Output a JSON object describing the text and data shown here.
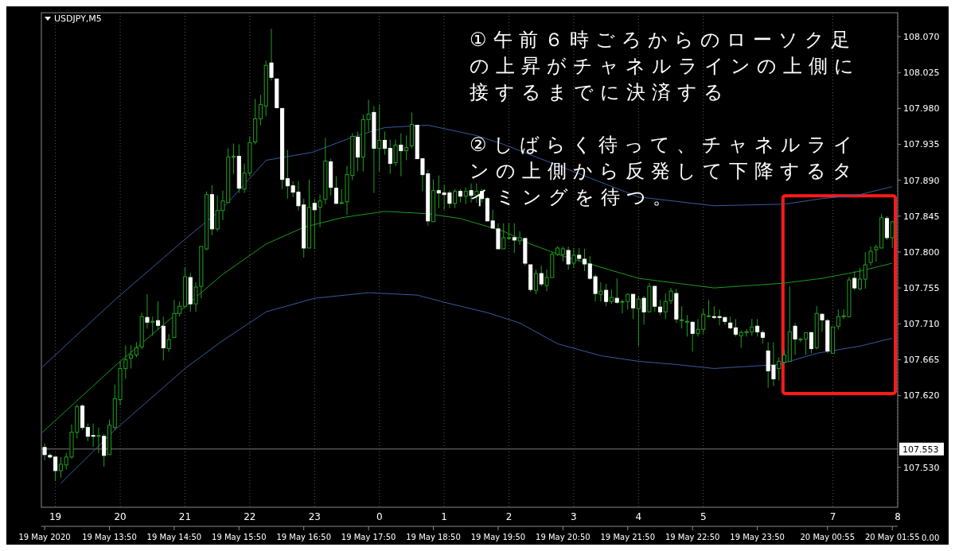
{
  "chart_data": {
    "type": "candlestick",
    "title": "USDJPY,M5",
    "x": [
      "2020-05-19T12:50",
      "2020-05-19T12:55",
      "2020-05-19T13:00",
      "2020-05-19T13:05",
      "2020-05-19T13:10",
      "2020-05-19T13:15",
      "2020-05-19T13:20",
      "2020-05-19T13:25",
      "2020-05-19T13:30",
      "2020-05-19T13:35",
      "2020-05-19T13:40",
      "2020-05-19T13:45",
      "2020-05-19T13:50",
      "2020-05-19T13:55",
      "2020-05-19T14:00",
      "2020-05-19T14:05",
      "2020-05-19T14:10",
      "2020-05-19T14:15",
      "2020-05-19T14:20",
      "2020-05-19T14:25",
      "2020-05-19T14:30",
      "2020-05-19T14:35",
      "2020-05-19T14:40",
      "2020-05-19T14:45",
      "2020-05-19T14:50",
      "2020-05-19T14:55",
      "2020-05-19T15:00",
      "2020-05-19T15:05",
      "2020-05-19T15:10",
      "2020-05-19T15:15",
      "2020-05-19T15:20",
      "2020-05-19T15:25",
      "2020-05-19T15:30",
      "2020-05-19T15:35",
      "2020-05-19T15:40",
      "2020-05-19T15:45",
      "2020-05-19T15:50",
      "2020-05-19T15:55",
      "2020-05-19T16:00",
      "2020-05-19T16:05",
      "2020-05-19T16:10",
      "2020-05-19T16:15",
      "2020-05-19T16:20",
      "2020-05-19T16:25",
      "2020-05-19T16:30",
      "2020-05-19T16:35",
      "2020-05-19T16:40",
      "2020-05-19T16:45",
      "2020-05-19T16:50",
      "2020-05-19T16:55",
      "2020-05-19T17:00",
      "2020-05-19T17:05",
      "2020-05-19T17:10",
      "2020-05-19T17:15",
      "2020-05-19T17:20",
      "2020-05-19T17:25",
      "2020-05-19T17:30",
      "2020-05-19T17:35",
      "2020-05-19T17:40",
      "2020-05-19T17:45",
      "2020-05-19T17:50",
      "2020-05-19T17:55",
      "2020-05-19T18:00",
      "2020-05-19T18:05",
      "2020-05-19T18:10",
      "2020-05-19T18:15",
      "2020-05-19T18:20",
      "2020-05-19T18:25",
      "2020-05-19T18:30",
      "2020-05-19T18:35",
      "2020-05-19T18:40",
      "2020-05-19T18:45",
      "2020-05-19T18:50",
      "2020-05-19T18:55",
      "2020-05-19T19:00",
      "2020-05-19T19:05",
      "2020-05-19T19:10",
      "2020-05-19T19:15",
      "2020-05-19T19:20",
      "2020-05-19T19:25",
      "2020-05-19T19:30",
      "2020-05-19T19:35",
      "2020-05-19T19:40",
      "2020-05-19T19:45",
      "2020-05-19T19:50",
      "2020-05-19T19:55",
      "2020-05-19T20:00",
      "2020-05-19T20:05",
      "2020-05-19T20:10",
      "2020-05-19T20:15",
      "2020-05-19T20:20",
      "2020-05-19T20:25",
      "2020-05-19T20:30",
      "2020-05-19T20:35",
      "2020-05-19T20:40",
      "2020-05-19T20:45",
      "2020-05-19T20:50",
      "2020-05-19T20:55",
      "2020-05-19T21:00",
      "2020-05-19T21:05",
      "2020-05-19T21:10",
      "2020-05-19T21:15",
      "2020-05-19T21:20",
      "2020-05-19T21:25",
      "2020-05-19T21:30",
      "2020-05-19T21:35",
      "2020-05-19T21:40",
      "2020-05-19T21:45",
      "2020-05-19T21:50",
      "2020-05-19T21:55",
      "2020-05-19T22:00",
      "2020-05-19T22:05",
      "2020-05-19T22:10",
      "2020-05-19T22:15",
      "2020-05-19T22:20",
      "2020-05-19T22:25",
      "2020-05-19T22:30",
      "2020-05-19T22:35",
      "2020-05-19T22:40",
      "2020-05-19T22:45",
      "2020-05-19T22:50",
      "2020-05-19T22:55",
      "2020-05-19T23:00",
      "2020-05-19T23:05",
      "2020-05-19T23:10",
      "2020-05-19T23:15",
      "2020-05-19T23:20",
      "2020-05-19T23:25",
      "2020-05-19T23:30",
      "2020-05-19T23:35",
      "2020-05-19T23:40",
      "2020-05-19T23:45",
      "2020-05-19T23:50",
      "2020-05-19T23:55",
      "2020-05-20T00:00",
      "2020-05-20T00:05",
      "2020-05-20T00:10",
      "2020-05-20T00:15",
      "2020-05-20T00:20",
      "2020-05-20T00:25",
      "2020-05-20T00:30",
      "2020-05-20T00:35",
      "2020-05-20T00:40",
      "2020-05-20T00:45",
      "2020-05-20T00:50",
      "2020-05-20T00:55",
      "2020-05-20T01:00",
      "2020-05-20T01:05",
      "2020-05-20T01:10",
      "2020-05-20T01:15",
      "2020-05-20T01:20",
      "2020-05-20T01:25",
      "2020-05-20T01:30",
      "2020-05-20T01:35",
      "2020-05-20T01:40",
      "2020-05-20T01:45",
      "2020-05-20T01:50",
      "2020-05-20T01:55"
    ],
    "series": [
      {
        "type": "candlestick",
        "color": "#1fa01f",
        "colors": [
          "#ffffff",
          "#ffffff",
          "#ffffff",
          "#1fa01f",
          "#1fa01f",
          "#1fa01f",
          "#1fa01f",
          "#ffffff",
          "#ffffff",
          "#ffffff",
          "#1fa01f",
          "#ffffff",
          "#1fa01f",
          "#1fa01f",
          "#1fa01f",
          "#1fa01f",
          "#1fa01f",
          "#1fa01f",
          "#1fa01f",
          "#ffffff",
          "#1fa01f",
          "#ffffff",
          "#ffffff",
          "#1fa01f",
          "#1fa01f",
          "#1fa01f",
          "#1fa01f",
          "#ffffff",
          "#1fa01f",
          "#1fa01f",
          "#1fa01f",
          "#ffffff",
          "#1fa01f",
          "#1fa01f",
          "#1fa01f",
          "#1fa01f",
          "#ffffff",
          "#1fa01f",
          "#1fa01f",
          "#1fa01f",
          "#1fa01f",
          "#1fa01f",
          "#ffffff",
          "#ffffff",
          "#ffffff",
          "#ffffff",
          "#ffffff",
          "#ffffff",
          "#ffffff",
          "#1fa01f",
          "#ffffff",
          "#1fa01f",
          "#1fa01f",
          "#ffffff",
          "#ffffff",
          "#1fa01f",
          "#1fa01f",
          "#1fa01f",
          "#ffffff",
          "#1fa01f",
          "#1fa01f",
          "#ffffff",
          "#1fa01f",
          "#ffffff",
          "#ffffff",
          "#1fa01f",
          "#ffffff",
          "#1fa01f",
          "#1fa01f",
          "#ffffff",
          "#ffffff",
          "#ffffff",
          "#1fa01f",
          "#ffffff",
          "#ffffff",
          "#ffffff",
          "#1fa01f",
          "#ffffff",
          "#1fa01f",
          "#ffffff",
          "#1fa01f",
          "#ffffff",
          "#ffffff",
          "#ffffff",
          "#ffffff",
          "#1fa01f",
          "#1fa01f",
          "#ffffff",
          "#1fa01f",
          "#ffffff",
          "#ffffff",
          "#1fa01f",
          "#ffffff",
          "#1fa01f",
          "#1fa01f",
          "#1fa01f",
          "#1fa01f",
          "#ffffff",
          "#1fa01f",
          "#ffffff",
          "#ffffff",
          "#ffffff",
          "#ffffff",
          "#1fa01f",
          "#ffffff",
          "#1fa01f",
          "#ffffff",
          "#1fa01f",
          "#1fa01f",
          "#ffffff",
          "#1fa01f",
          "#ffffff",
          "#1fa01f",
          "#ffffff",
          "#ffffff",
          "#1fa01f",
          "#1fa01f",
          "#ffffff",
          "#1fa01f",
          "#1fa01f",
          "#ffffff",
          "#1fa01f",
          "#1fa01f",
          "#1fa01f",
          "#ffffff",
          "#ffffff",
          "#ffffff",
          "#ffffff",
          "#ffffff",
          "#1fa01f",
          "#1fa01f",
          "#1fa01f",
          "#ffffff",
          "#ffffff",
          "#ffffff",
          "#ffffff",
          "#1fa01f",
          "#1fa01f",
          "#1fa01f",
          "#ffffff",
          "#1fa01f",
          "#1fa01f",
          "#ffffff",
          "#1fa01f",
          "#ffffff",
          "#ffffff",
          "#1fa01f",
          "#1fa01f",
          "#1fa01f",
          "#1fa01f",
          "#ffffff",
          "#1fa01f",
          "#1fa01f",
          "#1fa01f",
          "#1fa01f",
          "#1fa01f",
          "#ffffff",
          "#1fa01f"
        ],
        "ohlc": [
          [
            107.555,
            107.56,
            107.539,
            107.546
          ],
          [
            107.545,
            107.548,
            107.541,
            107.543
          ],
          [
            107.543,
            107.543,
            107.513,
            107.526
          ],
          [
            107.526,
            107.543,
            107.517,
            107.534
          ],
          [
            107.533,
            107.548,
            107.527,
            107.543
          ],
          [
            107.543,
            107.584,
            107.541,
            107.574
          ],
          [
            107.574,
            107.609,
            107.566,
            107.606
          ],
          [
            107.607,
            107.609,
            107.577,
            107.58
          ],
          [
            107.58,
            107.585,
            107.563,
            107.569
          ],
          [
            107.57,
            107.585,
            107.556,
            107.569
          ],
          [
            107.569,
            107.58,
            107.548,
            107.57
          ],
          [
            107.569,
            107.572,
            107.531,
            107.545
          ],
          [
            107.546,
            107.59,
            107.546,
            107.583
          ],
          [
            107.58,
            107.634,
            107.577,
            107.616
          ],
          [
            107.615,
            107.663,
            107.608,
            107.654
          ],
          [
            107.654,
            107.683,
            107.641,
            107.665
          ],
          [
            107.667,
            107.683,
            107.654,
            107.671
          ],
          [
            107.671,
            107.687,
            107.668,
            107.68
          ],
          [
            107.681,
            107.724,
            107.678,
            107.719
          ],
          [
            107.718,
            107.747,
            107.704,
            107.712
          ],
          [
            107.713,
            107.719,
            107.695,
            107.713
          ],
          [
            107.714,
            107.738,
            107.703,
            107.708
          ],
          [
            107.707,
            107.719,
            107.664,
            107.68
          ],
          [
            107.679,
            107.697,
            107.675,
            107.69
          ],
          [
            107.693,
            107.74,
            107.692,
            107.723
          ],
          [
            107.723,
            107.738,
            107.719,
            107.732
          ],
          [
            107.732,
            107.781,
            107.73,
            107.769
          ],
          [
            107.768,
            107.774,
            107.725,
            107.735
          ],
          [
            107.735,
            107.762,
            107.725,
            107.756
          ],
          [
            107.757,
            107.807,
            107.742,
            107.807
          ],
          [
            107.804,
            107.876,
            107.802,
            107.872
          ],
          [
            107.872,
            107.884,
            107.821,
            107.829
          ],
          [
            107.829,
            107.871,
            107.826,
            107.852
          ],
          [
            107.852,
            107.877,
            107.84,
            107.864
          ],
          [
            107.862,
            107.93,
            107.862,
            107.919
          ],
          [
            107.92,
            107.936,
            107.898,
            107.92
          ],
          [
            107.92,
            107.935,
            107.874,
            107.88
          ],
          [
            107.879,
            107.911,
            107.874,
            107.899
          ],
          [
            107.899,
            107.945,
            107.895,
            107.937
          ],
          [
            107.938,
            107.992,
            107.935,
            107.967
          ],
          [
            107.967,
            107.997,
            107.959,
            107.985
          ],
          [
            107.983,
            108.04,
            107.97,
            108.034
          ],
          [
            108.037,
            108.08,
            108.015,
            108.019
          ],
          [
            108.017,
            108.017,
            107.98,
            107.981
          ],
          [
            107.98,
            107.98,
            107.879,
            107.891
          ],
          [
            107.892,
            107.928,
            107.867,
            107.883
          ],
          [
            107.883,
            107.889,
            107.869,
            107.875
          ],
          [
            107.875,
            107.889,
            107.852,
            107.858
          ],
          [
            107.859,
            107.867,
            107.793,
            107.805
          ],
          [
            107.805,
            107.891,
            107.805,
            107.856
          ],
          [
            107.861,
            107.867,
            107.804,
            107.853
          ],
          [
            107.856,
            107.872,
            107.831,
            107.864
          ],
          [
            107.866,
            107.943,
            107.86,
            107.914
          ],
          [
            107.913,
            107.917,
            107.871,
            107.881
          ],
          [
            107.88,
            107.895,
            107.86,
            107.861
          ],
          [
            107.862,
            107.879,
            107.86,
            107.862
          ],
          [
            107.863,
            107.908,
            107.847,
            107.897
          ],
          [
            107.896,
            107.949,
            107.89,
            107.945
          ],
          [
            107.944,
            107.951,
            107.901,
            107.919
          ],
          [
            107.919,
            107.972,
            107.901,
            107.966
          ],
          [
            107.966,
            107.991,
            107.951,
            107.973
          ],
          [
            107.975,
            107.983,
            107.874,
            107.93
          ],
          [
            107.93,
            107.985,
            107.901,
            107.94
          ],
          [
            107.94,
            107.951,
            107.922,
            107.93
          ],
          [
            107.93,
            107.941,
            107.898,
            107.911
          ],
          [
            107.912,
            107.941,
            107.908,
            107.934
          ],
          [
            107.934,
            107.949,
            107.895,
            107.927
          ],
          [
            107.927,
            107.946,
            107.915,
            107.931
          ],
          [
            107.933,
            107.975,
            107.93,
            107.96
          ],
          [
            107.959,
            107.959,
            107.917,
            107.917
          ],
          [
            107.917,
            107.917,
            107.876,
            107.897
          ],
          [
            107.898,
            107.903,
            107.833,
            107.839
          ],
          [
            107.838,
            107.891,
            107.838,
            107.877
          ],
          [
            107.877,
            107.896,
            107.855,
            107.874
          ],
          [
            107.874,
            107.884,
            107.853,
            107.872
          ],
          [
            107.874,
            107.877,
            107.855,
            107.861
          ],
          [
            107.861,
            107.879,
            107.855,
            107.876
          ],
          [
            107.876,
            107.879,
            107.862,
            107.87
          ],
          [
            107.87,
            107.881,
            107.86,
            107.876
          ],
          [
            107.877,
            107.886,
            107.862,
            107.871
          ],
          [
            107.871,
            107.886,
            107.862,
            107.876
          ],
          [
            107.876,
            107.879,
            107.862,
            107.867
          ],
          [
            107.867,
            107.869,
            107.839,
            107.839
          ],
          [
            107.839,
            107.853,
            107.83,
            107.83
          ],
          [
            107.829,
            107.836,
            107.804,
            107.804
          ],
          [
            107.804,
            107.836,
            107.804,
            107.818
          ],
          [
            107.818,
            107.836,
            107.815,
            107.818
          ],
          [
            107.818,
            107.836,
            107.799,
            107.815
          ],
          [
            107.814,
            107.826,
            107.809,
            107.818
          ],
          [
            107.817,
            107.817,
            107.783,
            107.786
          ],
          [
            107.784,
            107.784,
            107.75,
            107.753
          ],
          [
            107.752,
            107.778,
            107.747,
            107.773
          ],
          [
            107.773,
            107.783,
            107.757,
            107.76
          ],
          [
            107.758,
            107.778,
            107.751,
            107.768
          ],
          [
            107.768,
            107.8,
            107.768,
            107.797
          ],
          [
            107.797,
            107.807,
            107.795,
            107.805
          ],
          [
            107.797,
            107.807,
            107.788,
            107.804
          ],
          [
            107.802,
            107.807,
            107.778,
            107.785
          ],
          [
            107.786,
            107.805,
            107.78,
            107.796
          ],
          [
            107.796,
            107.805,
            107.788,
            107.792
          ],
          [
            107.791,
            107.804,
            107.776,
            107.785
          ],
          [
            107.785,
            107.795,
            107.765,
            107.767
          ],
          [
            107.769,
            107.772,
            107.738,
            107.748
          ],
          [
            107.747,
            107.762,
            107.738,
            107.751
          ],
          [
            107.752,
            107.76,
            107.732,
            107.738
          ],
          [
            107.738,
            107.753,
            107.735,
            107.743
          ],
          [
            107.742,
            107.767,
            107.735,
            107.737
          ],
          [
            107.738,
            107.74,
            107.723,
            107.738
          ],
          [
            107.738,
            107.748,
            107.728,
            107.747
          ],
          [
            107.747,
            107.747,
            107.716,
            107.73
          ],
          [
            107.729,
            107.745,
            107.682,
            107.741
          ],
          [
            107.742,
            107.745,
            107.709,
            107.725
          ],
          [
            107.725,
            107.761,
            107.725,
            107.757
          ],
          [
            107.757,
            107.757,
            107.725,
            107.732
          ],
          [
            107.731,
            107.74,
            107.721,
            107.725
          ],
          [
            107.725,
            107.748,
            107.716,
            107.738
          ],
          [
            107.739,
            107.755,
            107.735,
            107.751
          ],
          [
            107.748,
            107.754,
            107.711,
            107.716
          ],
          [
            107.715,
            107.732,
            107.704,
            107.715
          ],
          [
            107.713,
            107.721,
            107.694,
            107.713
          ],
          [
            107.712,
            107.713,
            107.675,
            107.698
          ],
          [
            107.698,
            107.716,
            107.694,
            107.703
          ],
          [
            107.703,
            107.729,
            107.697,
            107.722
          ],
          [
            107.72,
            107.74,
            107.718,
            107.72
          ],
          [
            107.719,
            107.732,
            107.716,
            107.718
          ],
          [
            107.719,
            107.728,
            107.708,
            107.718
          ],
          [
            107.718,
            107.718,
            107.709,
            107.713
          ],
          [
            107.711,
            107.719,
            107.703,
            107.705
          ],
          [
            107.705,
            107.716,
            107.694,
            107.697
          ],
          [
            107.695,
            107.702,
            107.68,
            107.699
          ],
          [
            107.7,
            107.703,
            107.694,
            107.7
          ],
          [
            107.7,
            107.716,
            107.695,
            107.706
          ],
          [
            107.707,
            107.716,
            107.694,
            107.7
          ],
          [
            107.699,
            107.702,
            107.685,
            107.693
          ],
          [
            107.676,
            107.687,
            107.63,
            107.651
          ],
          [
            107.658,
            107.687,
            107.632,
            107.641
          ],
          [
            107.654,
            107.668,
            107.639,
            107.663
          ],
          [
            107.662,
            107.678,
            107.66,
            107.671
          ],
          [
            107.663,
            107.757,
            107.663,
            107.7
          ],
          [
            107.707,
            107.711,
            107.671,
            107.691
          ],
          [
            107.691,
            107.692,
            107.687,
            107.691
          ],
          [
            107.691,
            107.699,
            107.671,
            107.699
          ],
          [
            107.699,
            107.7,
            107.673,
            107.679
          ],
          [
            107.68,
            107.732,
            107.678,
            107.723
          ],
          [
            107.722,
            107.723,
            107.7,
            107.715
          ],
          [
            107.714,
            107.716,
            107.673,
            107.676
          ],
          [
            107.673,
            107.706,
            107.673,
            107.706
          ],
          [
            107.707,
            107.728,
            107.703,
            107.719
          ],
          [
            107.719,
            107.728,
            107.716,
            107.72
          ],
          [
            107.719,
            107.769,
            107.719,
            107.765
          ],
          [
            107.767,
            107.776,
            107.752,
            107.755
          ],
          [
            107.754,
            107.78,
            107.752,
            107.766
          ],
          [
            107.766,
            107.8,
            107.754,
            107.784
          ],
          [
            107.787,
            107.807,
            107.783,
            107.801
          ],
          [
            107.803,
            107.809,
            107.788,
            107.806
          ],
          [
            107.805,
            107.848,
            107.805,
            107.843
          ],
          [
            107.842,
            107.845,
            107.815,
            107.818
          ],
          [
            107.818,
            107.839,
            107.805,
            107.838
          ]
        ]
      },
      {
        "type": "line",
        "color": "#3a5a9c",
        "x": [
          "2020-05-19T12:48",
          "2020-05-19T13:55",
          "2020-05-19T15:00",
          "2020-05-19T15:35",
          "2020-05-19T16:15",
          "2020-05-19T16:58",
          "2020-05-19T17:35",
          "2020-05-19T18:05",
          "2020-05-19T18:45",
          "2020-05-19T19:30",
          "2020-05-19T19:55",
          "2020-05-19T20:50",
          "2020-05-19T22:00",
          "2020-05-19T23:10",
          "2020-05-20T00:15",
          "2020-05-20T00:50",
          "2020-05-20T01:25",
          "2020-05-20T01:55"
        ],
        "values": [
          107.656,
          107.74,
          107.816,
          107.855,
          107.915,
          107.925,
          107.944,
          107.956,
          107.959,
          107.946,
          107.935,
          107.906,
          107.869,
          107.858,
          107.86,
          107.867,
          107.872,
          107.882
        ]
      },
      {
        "type": "line",
        "color": "#1c9a1c",
        "x": [
          "2020-05-19T12:48",
          "2020-05-19T13:55",
          "2020-05-19T15:35",
          "2020-05-19T16:15",
          "2020-05-19T16:50",
          "2020-05-19T17:25",
          "2020-05-19T18:05",
          "2020-05-19T18:45",
          "2020-05-19T19:15",
          "2020-05-19T19:55",
          "2020-05-19T20:20",
          "2020-05-19T20:50",
          "2020-05-19T21:25",
          "2020-05-19T22:00",
          "2020-05-19T22:35",
          "2020-05-19T23:10",
          "2020-05-20T00:15",
          "2020-05-20T00:50",
          "2020-05-20T01:25",
          "2020-05-20T01:55"
        ],
        "values": [
          107.574,
          107.657,
          107.772,
          107.81,
          107.831,
          107.843,
          107.851,
          107.848,
          107.842,
          107.826,
          107.81,
          107.795,
          107.781,
          107.767,
          107.761,
          107.755,
          107.761,
          107.767,
          107.776,
          107.786
        ]
      },
      {
        "type": "line",
        "color": "#3a5a9c",
        "x": [
          "2020-05-19T13:05",
          "2020-05-19T13:55",
          "2020-05-19T15:00",
          "2020-05-19T15:35",
          "2020-05-19T16:15",
          "2020-05-19T17:00",
          "2020-05-19T17:50",
          "2020-05-19T18:35",
          "2020-05-19T19:00",
          "2020-05-19T19:40",
          "2020-05-19T20:10",
          "2020-05-19T20:45",
          "2020-05-19T21:25",
          "2020-05-19T22:00",
          "2020-05-19T22:35",
          "2020-05-19T23:10",
          "2020-05-20T00:10",
          "2020-05-20T00:45",
          "2020-05-20T01:25",
          "2020-05-20T01:55"
        ],
        "values": [
          107.51,
          107.577,
          107.654,
          107.689,
          107.725,
          107.742,
          107.749,
          107.746,
          107.737,
          107.724,
          107.711,
          107.685,
          107.67,
          107.663,
          107.659,
          107.654,
          107.659,
          107.673,
          107.682,
          107.692
        ]
      }
    ],
    "xlim": [
      "2020-05-19T12:47",
      "2020-05-20T02:00"
    ],
    "x2lim": [
      "2020-05-19T12:47",
      "2020-05-20T02:00"
    ],
    "xticks": [
      {
        "value": "2020-05-19T13:00",
        "label": "19"
      },
      {
        "value": "2020-05-19T14:00",
        "label": "20"
      },
      {
        "value": "2020-05-19T15:00",
        "label": "21"
      },
      {
        "value": "2020-05-19T16:00",
        "label": "22"
      },
      {
        "value": "2020-05-19T17:00",
        "label": "23"
      },
      {
        "value": "2020-05-19T18:00",
        "label": "0"
      },
      {
        "value": "2020-05-19T19:00",
        "label": "1"
      },
      {
        "value": "2020-05-19T20:00",
        "label": "2"
      },
      {
        "value": "2020-05-19T21:00",
        "label": "3"
      },
      {
        "value": "2020-05-19T22:00",
        "label": "4"
      },
      {
        "value": "2020-05-19T23:00",
        "label": "5"
      },
      {
        "value": "2020-05-20T01:00",
        "label": "7"
      },
      {
        "value": "2020-05-20T02:00",
        "label": "8"
      }
    ],
    "x2ticks": [
      {
        "value": "2020-05-19T12:50",
        "label": "19 May 2020"
      },
      {
        "value": "2020-05-19T13:50",
        "label": "19 May 13:50"
      },
      {
        "value": "2020-05-19T14:50",
        "label": "19 May 14:50"
      },
      {
        "value": "2020-05-19T15:50",
        "label": "19 May 15:50"
      },
      {
        "value": "2020-05-19T16:50",
        "label": "19 May 16:50"
      },
      {
        "value": "2020-05-19T17:50",
        "label": "19 May 17:50"
      },
      {
        "value": "2020-05-19T18:50",
        "label": "19 May 18:50"
      },
      {
        "value": "2020-05-19T19:50",
        "label": "19 May 19:50"
      },
      {
        "value": "2020-05-19T20:50",
        "label": "19 May 20:50"
      },
      {
        "value": "2020-05-19T21:50",
        "label": "19 May 21:50"
      },
      {
        "value": "2020-05-19T22:50",
        "label": "19 May 22:50"
      },
      {
        "value": "2020-05-19T23:50",
        "label": "19 May 23:50"
      },
      {
        "value": "2020-05-20T00:55",
        "label": "20 May 00:55"
      },
      {
        "value": "2020-05-20T01:55",
        "label": "20 May 01:55"
      }
    ],
    "ylim": [
      107.48,
      108.1
    ],
    "yticks": [
      {
        "value": 108.07,
        "label": "108.070"
      },
      {
        "value": 108.025,
        "label": "108.025"
      },
      {
        "value": 107.98,
        "label": "107.980"
      },
      {
        "value": 107.935,
        "label": "107.935"
      },
      {
        "value": 107.89,
        "label": "107.890"
      },
      {
        "value": 107.845,
        "label": "107.845"
      },
      {
        "value": 107.8,
        "label": "107.800"
      },
      {
        "value": 107.755,
        "label": "107.755"
      },
      {
        "value": 107.71,
        "label": "107.710"
      },
      {
        "value": 107.665,
        "label": "107.665"
      },
      {
        "value": 107.62,
        "label": "107.620"
      },
      {
        "value": 107.53,
        "label": "107.530"
      }
    ],
    "ref_lines": [
      {
        "axis": "y",
        "value": 107.553,
        "label": "107.553",
        "color": "#7a7a7a"
      }
    ],
    "grid": "x",
    "annotations": [
      "①午前６時ごろからのローソク足の上昇がチャネルラインの上側に接するまでに決済する",
      "②しばらく待って、チャネルラインの上側から反発して下降するタイミングを待つ。",
      "0.00"
    ]
  }
}
